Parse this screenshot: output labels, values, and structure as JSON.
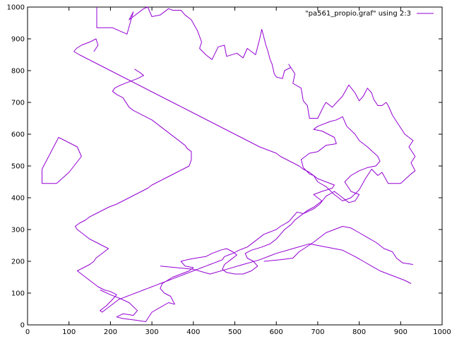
{
  "chart_data": {
    "type": "line",
    "title": "",
    "xlabel": "",
    "ylabel": "",
    "xlim": [
      0,
      1000
    ],
    "ylim": [
      0,
      1000
    ],
    "xticks": [
      0,
      100,
      200,
      300,
      400,
      500,
      600,
      700,
      800,
      900,
      1000
    ],
    "yticks": [
      0,
      100,
      200,
      300,
      400,
      500,
      600,
      700,
      800,
      900,
      1000
    ],
    "grid": false,
    "legend_position": "top-right",
    "series": [
      {
        "name": "\"pa561_propio.graf\" using 2:3",
        "color": "#9400d3",
        "x": [
          35,
          35,
          70,
          100,
          130,
          120,
          75,
          35
        ],
        "y": [
          490,
          445,
          445,
          480,
          530,
          560,
          590,
          490
        ]
      },
      {
        "name": "",
        "color": "#9400d3",
        "x": [
          167,
          167,
          205,
          240,
          255,
          245,
          280,
          290,
          300,
          320,
          340,
          350,
          370,
          380,
          395,
          410,
          420,
          415,
          430,
          445,
          460,
          475,
          480,
          505,
          520,
          530,
          550,
          560,
          565,
          570,
          575,
          580,
          585,
          590,
          595,
          600,
          615,
          620,
          635,
          630,
          645,
          640,
          660,
          665,
          675,
          680,
          700,
          715,
          720,
          735,
          760,
          775,
          790,
          800,
          810,
          820,
          830,
          835,
          845,
          855,
          865,
          870,
          880,
          890,
          900,
          910,
          930,
          920,
          935,
          925,
          935,
          925,
          900,
          870,
          855,
          845,
          830,
          815,
          800,
          780,
          760,
          740,
          720,
          700,
          690,
          680,
          665,
          660,
          680,
          700,
          720,
          745,
          740,
          725,
          710,
          690,
          700,
          730,
          745,
          760,
          770,
          790,
          800,
          820,
          845,
          850,
          840,
          820,
          800,
          780,
          765,
          780,
          800,
          790,
          775,
          760,
          740,
          720,
          705,
          690,
          665,
          650,
          640,
          630,
          610,
          600,
          590,
          580,
          570,
          560,
          550,
          540,
          530,
          520,
          510,
          495,
          485,
          475,
          470,
          460,
          450,
          440,
          430,
          420,
          410,
          400,
          390,
          380,
          370,
          360,
          350,
          340,
          330,
          320,
          310,
          300,
          290,
          280,
          270,
          260,
          250,
          240,
          230,
          220,
          210,
          200,
          190,
          180,
          175,
          190,
          205,
          215,
          200,
          185,
          170,
          160,
          150,
          140,
          130,
          120,
          135,
          150,
          160,
          165,
          175,
          185,
          195,
          180,
          165,
          150,
          140,
          130,
          120,
          115,
          125,
          140,
          150,
          165,
          180,
          195,
          215,
          230,
          245,
          260,
          275,
          290,
          300,
          315,
          330,
          345,
          360,
          375,
          390,
          395,
          395,
          385,
          380,
          370,
          360,
          350,
          340,
          330,
          320,
          310,
          300,
          285,
          270,
          255,
          245,
          240,
          235,
          230,
          215,
          205,
          210,
          225,
          245,
          265,
          280,
          270,
          258
        ],
        "y": [
          1000,
          935,
          935,
          915,
          985,
          960,
          995,
          1000,
          970,
          975,
          995,
          990,
          990,
          975,
          960,
          925,
          890,
          870,
          850,
          835,
          875,
          880,
          845,
          855,
          840,
          870,
          850,
          900,
          930,
          905,
          880,
          860,
          835,
          820,
          790,
          780,
          775,
          800,
          810,
          820,
          790,
          760,
          745,
          705,
          690,
          650,
          650,
          690,
          700,
          685,
          720,
          755,
          730,
          705,
          720,
          745,
          730,
          710,
          690,
          690,
          700,
          690,
          660,
          640,
          620,
          600,
          580,
          560,
          530,
          510,
          485,
          475,
          445,
          445,
          480,
          470,
          490,
          460,
          425,
          400,
          390,
          410,
          435,
          450,
          470,
          475,
          495,
          520,
          540,
          545,
          565,
          570,
          590,
          600,
          610,
          615,
          625,
          640,
          645,
          655,
          625,
          600,
          580,
          560,
          530,
          515,
          500,
          495,
          485,
          470,
          450,
          420,
          410,
          390,
          385,
          400,
          420,
          405,
          380,
          365,
          350,
          355,
          340,
          325,
          310,
          300,
          295,
          290,
          285,
          275,
          265,
          255,
          245,
          240,
          235,
          225,
          220,
          215,
          205,
          200,
          195,
          190,
          185,
          180,
          175,
          170,
          165,
          160,
          155,
          150,
          145,
          140,
          135,
          130,
          125,
          120,
          115,
          110,
          105,
          100,
          95,
          90,
          85,
          80,
          70,
          60,
          50,
          40,
          45,
          60,
          80,
          95,
          105,
          110,
          120,
          130,
          140,
          150,
          160,
          170,
          180,
          190,
          200,
          210,
          220,
          230,
          240,
          250,
          260,
          270,
          280,
          290,
          300,
          310,
          320,
          330,
          340,
          350,
          360,
          370,
          380,
          390,
          400,
          410,
          420,
          430,
          440,
          450,
          460,
          470,
          480,
          490,
          500,
          520,
          545,
          555,
          565,
          575,
          585,
          595,
          605,
          615,
          625,
          635,
          645,
          655,
          665,
          675,
          685,
          695,
          705,
          715,
          725,
          735,
          745,
          755,
          765,
          775,
          785,
          795,
          805
        ]
      },
      {
        "name": "",
        "color": "#9400d3",
        "x": [
          175,
          200,
          220,
          245,
          265,
          255,
          230,
          215,
          230,
          260,
          285,
          300,
          320,
          340,
          355,
          345,
          330,
          320,
          325,
          350,
          370,
          390,
          400,
          380,
          370,
          385,
          405,
          430,
          445,
          465,
          480,
          495,
          505,
          490,
          475,
          470,
          480,
          500,
          520,
          540,
          555,
          545,
          530,
          525,
          540,
          565,
          585,
          600,
          610,
          620,
          635,
          645,
          660,
          675,
          690,
          700,
          710,
          700,
          690,
          710,
          735,
          740,
          720,
          700,
          690,
          680,
          665,
          655,
          640,
          625,
          610,
          600,
          580,
          560,
          545,
          530,
          515,
          500,
          485,
          470,
          455,
          440,
          425,
          410,
          395,
          380,
          365,
          350,
          335,
          320,
          305,
          290,
          275,
          260,
          245,
          230,
          215,
          200,
          185,
          170,
          155,
          140,
          125,
          112,
          118,
          130,
          150,
          165,
          170,
          160
        ],
        "y": [
          110,
          95,
          85,
          70,
          45,
          30,
          35,
          25,
          20,
          15,
          10,
          40,
          55,
          70,
          65,
          90,
          100,
          115,
          130,
          150,
          160,
          170,
          180,
          185,
          200,
          205,
          210,
          215,
          225,
          235,
          240,
          230,
          220,
          205,
          190,
          175,
          165,
          160,
          160,
          170,
          185,
          200,
          210,
          225,
          235,
          245,
          255,
          270,
          285,
          300,
          315,
          330,
          345,
          360,
          370,
          380,
          390,
          400,
          410,
          420,
          430,
          440,
          450,
          460,
          470,
          480,
          490,
          500,
          510,
          520,
          530,
          540,
          550,
          560,
          570,
          580,
          590,
          600,
          610,
          620,
          630,
          640,
          650,
          660,
          670,
          680,
          690,
          700,
          710,
          720,
          730,
          740,
          750,
          760,
          770,
          780,
          790,
          800,
          810,
          820,
          830,
          840,
          850,
          860,
          870,
          880,
          890,
          900,
          880,
          860
        ]
      },
      {
        "name": "",
        "color": "#9400d3",
        "x": [
          570,
          610,
          640,
          655,
          690,
          720,
          740,
          760,
          780,
          800,
          820,
          840,
          860,
          880,
          890,
          905,
          930
        ],
        "y": [
          200,
          205,
          210,
          230,
          260,
          290,
          300,
          310,
          305,
          290,
          275,
          260,
          240,
          230,
          210,
          195,
          190
        ]
      },
      {
        "name": "",
        "color": "#9400d3",
        "x": [
          320,
          360,
          400,
          440,
          480,
          520,
          560,
          600,
          640,
          680,
          720,
          760,
          790,
          810,
          830,
          850,
          870,
          890,
          910,
          925
        ],
        "y": [
          185,
          180,
          175,
          160,
          175,
          190,
          205,
          225,
          240,
          255,
          245,
          235,
          215,
          200,
          185,
          170,
          160,
          150,
          140,
          130
        ]
      }
    ]
  }
}
